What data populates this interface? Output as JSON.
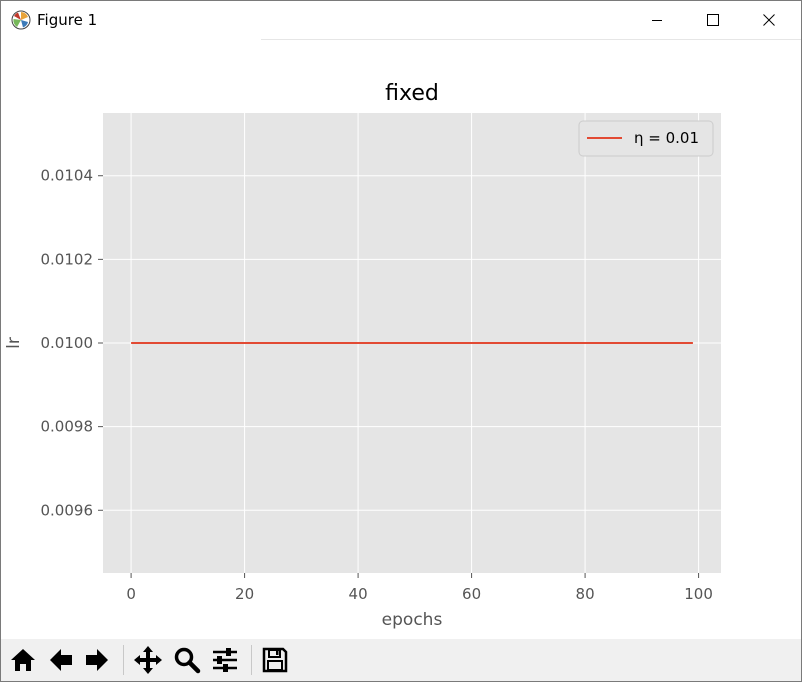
{
  "window": {
    "title": "Figure 1",
    "app_icon": "matplotlib-icon",
    "controls": [
      "minimize-icon",
      "maximize-icon",
      "close-icon"
    ]
  },
  "toolbar": {
    "buttons": [
      "home-icon",
      "back-arrow-icon",
      "forward-arrow-icon",
      "pan-icon",
      "zoom-icon",
      "configure-subplots-icon",
      "save-icon"
    ]
  },
  "chart_data": {
    "type": "line",
    "title": "fixed",
    "xlabel": "epochs",
    "ylabel": "lr",
    "xlim": [
      -4.95,
      103.95
    ],
    "ylim": [
      0.00945,
      0.01055
    ],
    "xticks": [
      0,
      20,
      40,
      60,
      80,
      100
    ],
    "xtick_labels": [
      "0",
      "20",
      "40",
      "60",
      "80",
      "100"
    ],
    "yticks": [
      0.0096,
      0.0098,
      0.01,
      0.0102,
      0.0104
    ],
    "ytick_labels": [
      "0.0096",
      "0.0098",
      "0.0100",
      "0.0102",
      "0.0104"
    ],
    "grid": true,
    "legend_position": "top-right",
    "series": [
      {
        "name": "η = 0.01",
        "color": "#e24a33",
        "x": [
          0,
          99
        ],
        "y": [
          0.01,
          0.01
        ]
      }
    ],
    "style": {
      "axes_bg": "#e5e5e5",
      "grid_color": "#ffffff",
      "tick_color": "#555555"
    }
  }
}
